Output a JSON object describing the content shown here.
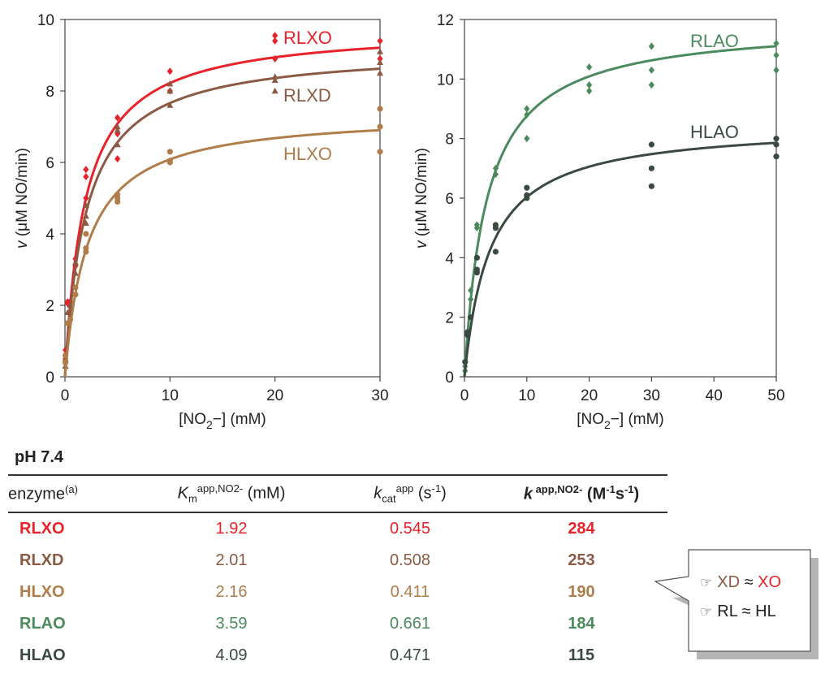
{
  "chart_data": [
    {
      "type": "scatter",
      "x_label_parts": [
        "[NO",
        "2",
        "−] (mM)"
      ],
      "y_label_parts": [
        "v",
        " (μM NO/min)"
      ],
      "xlim": [
        0,
        30
      ],
      "ylim": [
        0,
        10
      ],
      "x_ticks": [
        "0",
        "10",
        "20",
        "30"
      ],
      "y_ticks": [
        "0",
        "2",
        "4",
        "6",
        "8",
        "10"
      ],
      "grid": false,
      "series": [
        {
          "name": "RLXO",
          "color": "#e8222a",
          "marker": "diamond",
          "points": [
            [
              0.05,
              0.5
            ],
            [
              0.05,
              0.6
            ],
            [
              0.05,
              0.75
            ],
            [
              0.25,
              2.05
            ],
            [
              0.25,
              2.1
            ],
            [
              0.5,
              2.1
            ],
            [
              1,
              3.1
            ],
            [
              1,
              3.3
            ],
            [
              2,
              5.0
            ],
            [
              2,
              5.6
            ],
            [
              2,
              5.8
            ],
            [
              5,
              6.1
            ],
            [
              5,
              6.8
            ],
            [
              5,
              7.25
            ],
            [
              10,
              8.0
            ],
            [
              10,
              8.55
            ],
            [
              20,
              8.9
            ],
            [
              20,
              9.4
            ],
            [
              20,
              9.55
            ],
            [
              30,
              8.9
            ],
            [
              30,
              9.4
            ]
          ],
          "fit": {
            "Vmax": 9.8,
            "Km": 1.92
          }
        },
        {
          "name": "RLXD",
          "color": "#8b5a44",
          "marker": "triangle",
          "points": [
            [
              0.05,
              0.3
            ],
            [
              0.05,
              0.5
            ],
            [
              0.25,
              1.8
            ],
            [
              0.5,
              2.0
            ],
            [
              1,
              2.9
            ],
            [
              1,
              3.2
            ],
            [
              2,
              4.3
            ],
            [
              2,
              4.5
            ],
            [
              2,
              4.8
            ],
            [
              5,
              6.5
            ],
            [
              5,
              6.9
            ],
            [
              5,
              7.0
            ],
            [
              10,
              7.6
            ],
            [
              10,
              8.0
            ],
            [
              10,
              8.2
            ],
            [
              20,
              8.0
            ],
            [
              20,
              8.3
            ],
            [
              20,
              8.4
            ],
            [
              30,
              8.5
            ],
            [
              30,
              8.8
            ],
            [
              30,
              9.1
            ]
          ],
          "fit": {
            "Vmax": 9.2,
            "Km": 2.01
          }
        },
        {
          "name": "HLXO",
          "color": "#b07d4a",
          "marker": "circle",
          "points": [
            [
              0.05,
              0.4
            ],
            [
              0.05,
              0.6
            ],
            [
              0.25,
              1.5
            ],
            [
              0.5,
              1.6
            ],
            [
              1,
              2.3
            ],
            [
              1,
              2.5
            ],
            [
              2,
              3.5
            ],
            [
              2,
              3.6
            ],
            [
              2,
              4.0
            ],
            [
              5,
              4.9
            ],
            [
              5,
              5.0
            ],
            [
              5,
              5.1
            ],
            [
              10,
              6.0
            ],
            [
              10,
              6.05
            ],
            [
              10,
              6.3
            ],
            [
              30,
              6.3
            ],
            [
              30,
              7.0
            ],
            [
              30,
              7.5
            ]
          ],
          "fit": {
            "Vmax": 7.4,
            "Km": 2.16
          }
        }
      ]
    },
    {
      "type": "scatter",
      "x_label_parts": [
        "[NO",
        "2",
        "−] (mM)"
      ],
      "y_label_parts": [
        "v",
        " (μM NO/min)"
      ],
      "xlim": [
        0,
        50
      ],
      "ylim": [
        0,
        12
      ],
      "x_ticks": [
        "0",
        "10",
        "20",
        "30",
        "40",
        "50"
      ],
      "y_ticks": [
        "0",
        "2",
        "4",
        "6",
        "8",
        "10",
        "12"
      ],
      "grid": false,
      "series": [
        {
          "name": "RLAO",
          "color": "#4a8a5c",
          "marker": "diamond",
          "points": [
            [
              0.1,
              0.2
            ],
            [
              0.1,
              0.35
            ],
            [
              0.5,
              1.5
            ],
            [
              1,
              2.6
            ],
            [
              1,
              2.9
            ],
            [
              2,
              5.0
            ],
            [
              2,
              5.1
            ],
            [
              5,
              6.8
            ],
            [
              5,
              7.0
            ],
            [
              10,
              8.0
            ],
            [
              10,
              8.8
            ],
            [
              10,
              9.0
            ],
            [
              20,
              9.6
            ],
            [
              20,
              9.8
            ],
            [
              20,
              10.4
            ],
            [
              30,
              9.8
            ],
            [
              30,
              10.3
            ],
            [
              30,
              11.1
            ],
            [
              50,
              10.3
            ],
            [
              50,
              10.8
            ],
            [
              50,
              11.2
            ]
          ],
          "fit": {
            "Vmax": 11.9,
            "Km": 3.59
          }
        },
        {
          "name": "HLAO",
          "color": "#3a4a40",
          "marker": "circle",
          "points": [
            [
              0.1,
              0.5
            ],
            [
              0.5,
              1.4
            ],
            [
              0.5,
              1.5
            ],
            [
              1,
              2.0
            ],
            [
              2,
              3.5
            ],
            [
              2,
              3.6
            ],
            [
              2,
              4.0
            ],
            [
              5,
              4.2
            ],
            [
              5,
              5.0
            ],
            [
              5,
              5.1
            ],
            [
              10,
              6.0
            ],
            [
              10,
              6.1
            ],
            [
              10,
              6.35
            ],
            [
              30,
              6.4
            ],
            [
              30,
              7.0
            ],
            [
              30,
              7.8
            ],
            [
              50,
              7.4
            ],
            [
              50,
              7.8
            ],
            [
              50,
              8.0
            ]
          ],
          "fit": {
            "Vmax": 8.5,
            "Km": 4.09
          }
        }
      ]
    }
  ],
  "table": {
    "condition": "pH 7.4",
    "headers": {
      "enzyme": {
        "main": "enzyme",
        "sup": "(a)"
      },
      "km": {
        "main": "K",
        "sub": "m",
        "sup": "app,NO2-",
        "unit": " (mM)"
      },
      "kcat": {
        "main": "k",
        "sub": "cat",
        "sup": "app",
        "unit_pre": " (s",
        "unit_sup": "-1",
        "unit_post": ")"
      },
      "k": {
        "main": "k",
        "sup": " app,NO2-",
        "unit_pre": " (M",
        "unit_sup1": "-1",
        "unit_mid": "s",
        "unit_sup2": "-1",
        "unit_post": ")"
      }
    },
    "rows": [
      {
        "enzyme": "RLXO",
        "km": "1.92",
        "kcat": "0.545",
        "k": "284",
        "color": "#e8222a"
      },
      {
        "enzyme": "RLXD",
        "km": "2.01",
        "kcat": "0.508",
        "k": "253",
        "color": "#8b5a44"
      },
      {
        "enzyme": "HLXO",
        "km": "2.16",
        "kcat": "0.411",
        "k": "190",
        "color": "#b07d4a"
      },
      {
        "enzyme": "RLAO",
        "km": "3.59",
        "kcat": "0.661",
        "k": "184",
        "color": "#4a8a5c"
      },
      {
        "enzyme": "HLAO",
        "km": "4.09",
        "kcat": "0.471",
        "k": "115",
        "color": "#3a4a40"
      }
    ]
  },
  "callout": {
    "line1": {
      "a": "XD",
      "op": " ≈ ",
      "b": "XO"
    },
    "line2": {
      "a": "RL",
      "op": " ≈ ",
      "b": "HL"
    },
    "icon": "pointing-hand-icon"
  }
}
